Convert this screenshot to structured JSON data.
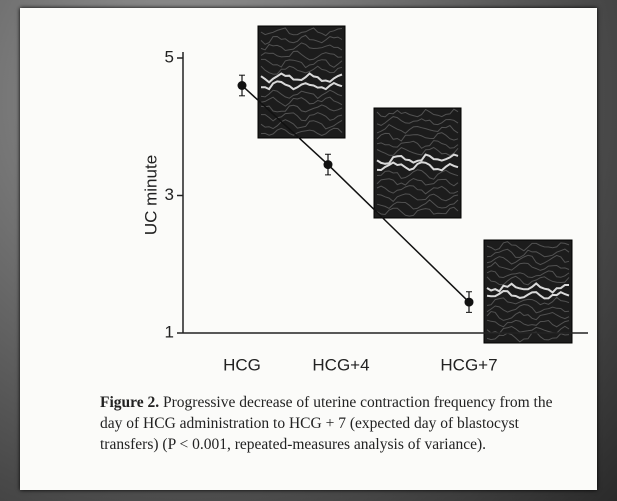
{
  "chart_data": {
    "type": "line",
    "y_label": "UC minute",
    "categories": [
      "HCG",
      "HCG+4",
      "HCG+7"
    ],
    "values": [
      4.6,
      3.45,
      1.45
    ],
    "errors": [
      0.15,
      0.15,
      0.15
    ],
    "color": "#111111",
    "ylim": [
      1,
      5
    ],
    "yticks": [
      1,
      3,
      5
    ],
    "caption": {
      "label": "Figure 2.",
      "text": "Progressive decrease of uterine contraction frequency from the day of HCG administration to HCG + 7 (expected day of blastocyst transfers) (P < 0.001, repeated-measures analysis of variance)."
    }
  }
}
